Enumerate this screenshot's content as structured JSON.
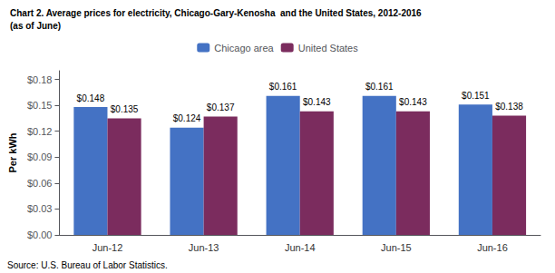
{
  "chart_data": {
    "type": "bar",
    "title": "Chart 2. Average prices for electricity, Chicago-Gary-Kenosha  and the United States, 2012-2016",
    "subtitle": "(as of June)",
    "ylabel": "Per kWh",
    "annotations": [
      "Source: U.S. Bureau of Labor Statistics."
    ],
    "categories": [
      "Jun-12",
      "Jun-13",
      "Jun-14",
      "Jun-15",
      "Jun-16"
    ],
    "series": [
      {
        "name": "Chicago area",
        "color": "#4472C4",
        "values": [
          0.148,
          0.124,
          0.161,
          0.161,
          0.151
        ],
        "value_labels": [
          "$0.148",
          "$0.124",
          "$0.161",
          "$0.161",
          "$0.151"
        ]
      },
      {
        "name": "United States",
        "color": "#7B2C5E",
        "values": [
          0.135,
          0.137,
          0.143,
          0.143,
          0.138
        ],
        "value_labels": [
          "$0.135",
          "$0.137",
          "$0.143",
          "$0.143",
          "$0.138"
        ]
      }
    ],
    "ylim": [
      0,
      0.19
    ],
    "yticks": [
      {
        "value": 0.0,
        "label": "$0.00"
      },
      {
        "value": 0.03,
        "label": "$0.03"
      },
      {
        "value": 0.06,
        "label": "$0.06"
      },
      {
        "value": 0.09,
        "label": "$0.09"
      },
      {
        "value": 0.12,
        "label": "$0.12"
      },
      {
        "value": 0.15,
        "label": "$0.15"
      },
      {
        "value": 0.18,
        "label": "$0.18"
      }
    ],
    "grid": false,
    "legend": "top",
    "data_labels": true
  }
}
